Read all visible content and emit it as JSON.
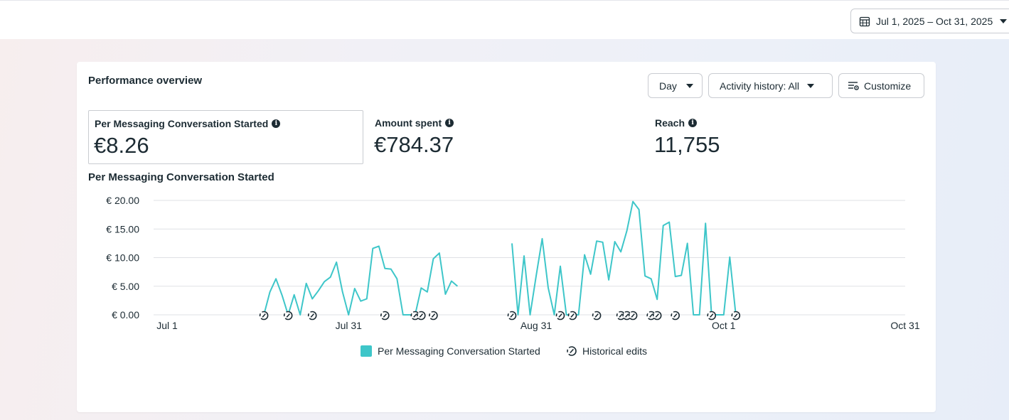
{
  "date_range": {
    "label": "Jul 1, 2025 – Oct 31, 2025"
  },
  "card": {
    "title": "Performance overview",
    "controls": {
      "day": "Day",
      "activity": "Activity history: All",
      "customize": "Customize"
    }
  },
  "metrics": [
    {
      "label": "Per Messaging Conversation Started",
      "value": "€8.26",
      "selected": true
    },
    {
      "label": "Amount spent",
      "value": "€784.37",
      "selected": false
    },
    {
      "label": "Reach",
      "value": "11,755",
      "selected": false
    }
  ],
  "chart_data": {
    "type": "line",
    "title": "Per Messaging Conversation Started",
    "y_ticks": [
      "€ 20.00",
      "€ 15.00",
      "€ 10.00",
      "€ 5.00",
      "€ 0.00"
    ],
    "ylim": [
      0,
      20
    ],
    "grid": true,
    "x_tick_labels": [
      {
        "label": "Jul 1",
        "day": 0
      },
      {
        "label": "Jul 31",
        "day": 30
      },
      {
        "label": "Aug 31",
        "day": 61
      },
      {
        "label": "Oct 1",
        "day": 92
      },
      {
        "label": "Oct 31",
        "day": 122
      }
    ],
    "x_range_days": [
      0,
      122
    ],
    "series": [
      {
        "name": "Per Messaging Conversation Started",
        "color": "#3ec6c9",
        "segments": [
          [
            [
              16,
              0
            ],
            [
              17,
              4
            ],
            [
              18,
              6.3
            ],
            [
              19,
              3.4
            ],
            [
              20,
              0
            ],
            [
              21,
              3.5
            ],
            [
              22,
              0
            ],
            [
              23,
              5.5
            ],
            [
              24,
              2.8
            ],
            [
              25,
              4.2
            ],
            [
              26,
              5.8
            ],
            [
              27,
              6.6
            ],
            [
              28,
              9.2
            ],
            [
              29,
              4
            ],
            [
              30,
              0
            ],
            [
              31,
              4.6
            ],
            [
              32,
              2.4
            ],
            [
              33,
              2.8
            ],
            [
              34,
              11.6
            ],
            [
              35,
              12
            ],
            [
              36,
              8.1
            ],
            [
              37,
              8
            ],
            [
              38,
              6.3
            ],
            [
              39,
              0
            ],
            [
              40,
              0
            ],
            [
              41,
              0
            ],
            [
              42,
              4.7
            ],
            [
              43,
              4
            ],
            [
              44,
              9.8
            ],
            [
              45,
              10.8
            ],
            [
              46,
              3.6
            ],
            [
              47,
              5.9
            ],
            [
              48,
              5
            ]
          ],
          [
            [
              57,
              12.5
            ],
            [
              58,
              0
            ],
            [
              59,
              10.3
            ],
            [
              60,
              0
            ],
            [
              61,
              6.8
            ],
            [
              62,
              13.3
            ],
            [
              63,
              4.7
            ],
            [
              64,
              0
            ],
            [
              65,
              8.5
            ],
            [
              66,
              0
            ],
            [
              67,
              0
            ],
            [
              68,
              0
            ],
            [
              69,
              10.5
            ],
            [
              70,
              7.1
            ],
            [
              71,
              12.9
            ],
            [
              72,
              12.7
            ],
            [
              73,
              6.1
            ],
            [
              74,
              12.8
            ],
            [
              75,
              11
            ],
            [
              76,
              14.7
            ],
            [
              77,
              19.8
            ],
            [
              78,
              18.4
            ],
            [
              79,
              6.8
            ],
            [
              80,
              6.3
            ],
            [
              81,
              2.7
            ],
            [
              82,
              15.6
            ],
            [
              83,
              16.2
            ],
            [
              84,
              6.7
            ],
            [
              85,
              6.9
            ],
            [
              86,
              12.5
            ],
            [
              87,
              0
            ],
            [
              88,
              0
            ],
            [
              89,
              16
            ],
            [
              90,
              0
            ],
            [
              91,
              0
            ],
            [
              92,
              0
            ],
            [
              93,
              10.1
            ],
            [
              94,
              0
            ]
          ]
        ]
      }
    ],
    "historical_edit_days": [
      16,
      20,
      24,
      36,
      41,
      42,
      44,
      57,
      65,
      67,
      71,
      75,
      76,
      77,
      80,
      81,
      84,
      90,
      94
    ],
    "legend": [
      {
        "label": "Per Messaging Conversation Started",
        "color": "#3ec6c9"
      },
      {
        "label": "Historical edits",
        "icon": "historical-edit-icon"
      }
    ]
  }
}
